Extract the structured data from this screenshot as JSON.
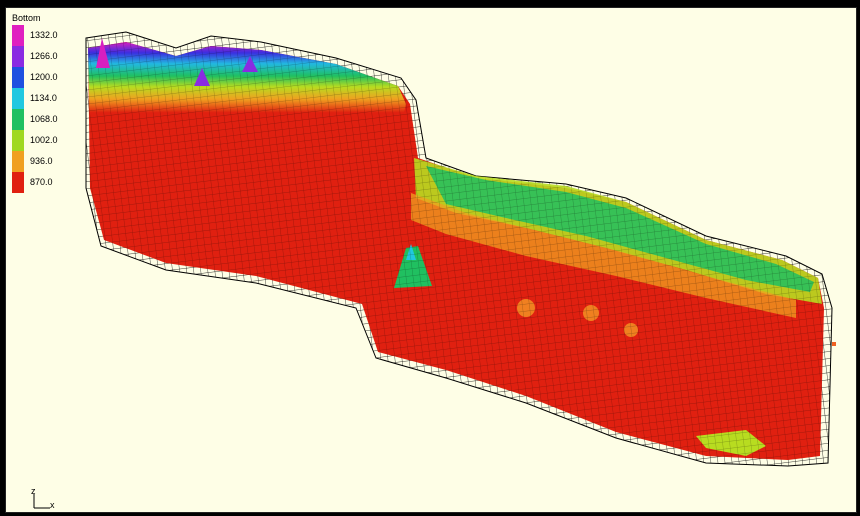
{
  "legend": {
    "title": "Bottom",
    "items": [
      {
        "label": "1332.0",
        "color": "#e020c0"
      },
      {
        "label": "1266.0",
        "color": "#8a2be2"
      },
      {
        "label": "1200.0",
        "color": "#1e50e0"
      },
      {
        "label": "1134.0",
        "color": "#20c8e0"
      },
      {
        "label": "1068.0",
        "color": "#20c060"
      },
      {
        "label": "1002.0",
        "color": "#a0d820"
      },
      {
        "label": "936.0",
        "color": "#f0a020"
      },
      {
        "label": "870.0",
        "color": "#e02010"
      }
    ]
  },
  "axis": {
    "z_label": "z",
    "x_label": "x"
  },
  "colors": {
    "background": "#fefee6",
    "mesh": "#000000"
  }
}
